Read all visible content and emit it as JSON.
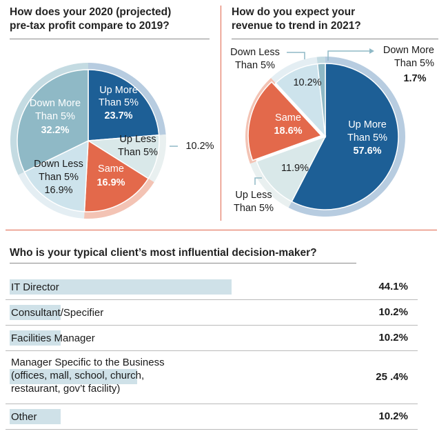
{
  "charts": {
    "profit": {
      "title_line1": "How does your 2020 (projected)",
      "title_line2": "pre-tax profit compare to 2019?"
    },
    "revenue": {
      "title_line1": "How do you expect your",
      "title_line2": "revenue to trend in 2021?"
    },
    "decision": {
      "title": "Who is your typical client’s most influential decision-maker?"
    }
  },
  "colors": {
    "dark_blue": "#1d5f96",
    "light_blue": "#cde3ec",
    "mid_teal": "#8fb9c6",
    "pale_teal": "#d9e8e9",
    "orange": "#e3694b",
    "outer_ring": "#b9cfe0",
    "bar": "#cfe1e8",
    "divider": "#e0644a"
  },
  "chart_data": [
    {
      "type": "pie",
      "title": "How does your 2020 (projected) pre-tax profit compare to 2019?",
      "slices": [
        {
          "label_line1": "Up More",
          "label_line2": "Than 5%",
          "value": 23.7,
          "value_text": "23.7%"
        },
        {
          "label_line1": "Up Less",
          "label_line2": "Than 5%",
          "value": 10.2,
          "value_text": "10.2%"
        },
        {
          "label_line1": "Same",
          "label_line2": "",
          "value": 16.9,
          "value_text": "16.9%"
        },
        {
          "label_line1": "Down Less",
          "label_line2": "Than 5%",
          "value": 16.9,
          "value_text": "16.9%"
        },
        {
          "label_line1": "Down More",
          "label_line2": "Than 5%",
          "value": 32.2,
          "value_text": "32.2%"
        }
      ]
    },
    {
      "type": "pie",
      "title": "How do you expect your revenue to trend in 2021?",
      "slices": [
        {
          "label_line1": "Up More",
          "label_line2": "Than 5%",
          "value": 57.6,
          "value_text": "57.6%"
        },
        {
          "label_line1": "Up Less",
          "label_line2": "Than 5%",
          "value": 11.9,
          "value_text": "11.9%"
        },
        {
          "label_line1": "Same",
          "label_line2": "",
          "value": 18.6,
          "value_text": "18.6%"
        },
        {
          "label_line1": "Down Less",
          "label_line2": "Than 5%",
          "value": 10.2,
          "value_text": "10.2%"
        },
        {
          "label_line1": "Down More",
          "label_line2": "Than 5%",
          "value": 1.7,
          "value_text": "1.7%"
        }
      ]
    },
    {
      "type": "bar",
      "title": "Who is your typical client’s most influential decision-maker?",
      "categories": [
        [
          "IT Director"
        ],
        [
          "Consultant/Specifier"
        ],
        [
          "Facilities Manager"
        ],
        [
          "Manager Specific to the Business",
          "(offices, mall, school, church,",
          "restaurant, gov’t facility)"
        ],
        [
          "Other"
        ]
      ],
      "values": [
        44.1,
        10.2,
        10.2,
        25.4,
        10.2
      ],
      "value_labels": [
        "44.1%",
        "10.2%",
        "10.2%",
        "25 .4%",
        "10.2%"
      ]
    }
  ]
}
